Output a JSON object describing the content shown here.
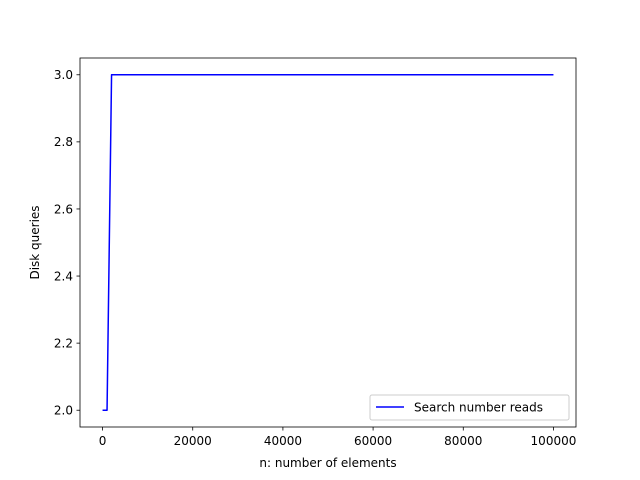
{
  "chart_data": {
    "type": "line",
    "title": "",
    "xlabel": "n: number of elements",
    "ylabel": "Disk queries",
    "xlim": [
      -5000,
      105000
    ],
    "ylim": [
      1.95,
      3.05
    ],
    "xticks": [
      0,
      20000,
      40000,
      60000,
      80000,
      100000
    ],
    "xtick_labels": [
      "0",
      "20000",
      "40000",
      "60000",
      "80000",
      "100000"
    ],
    "yticks": [
      2.0,
      2.2,
      2.4,
      2.6,
      2.8,
      3.0
    ],
    "ytick_labels": [
      "2.0",
      "2.2",
      "2.4",
      "2.6",
      "2.8",
      "3.0"
    ],
    "grid": false,
    "legend_position": "lower-right",
    "series": [
      {
        "name": "Search number reads",
        "color": "#0000ff",
        "x": [
          0,
          1000,
          2000,
          100000
        ],
        "y": [
          2,
          2,
          3,
          3
        ]
      }
    ]
  }
}
